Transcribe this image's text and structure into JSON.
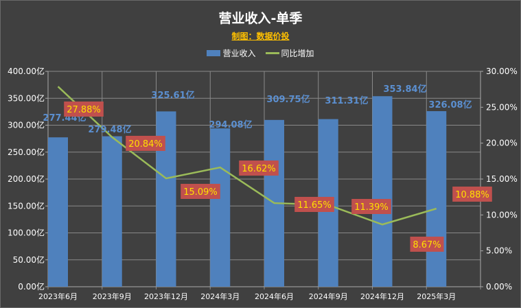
{
  "chart_data": {
    "type": "bar+line",
    "title": "营业收入-单季",
    "subtitle": "制图：数据价投",
    "categories": [
      "2023年6月",
      "2023年9月",
      "2023年12月",
      "2024年3月",
      "2024年6月",
      "2024年9月",
      "2024年12月",
      "2025年3月"
    ],
    "series": [
      {
        "name": "营业收入",
        "type": "bar",
        "axis": "left",
        "values": [
          277.44,
          279.48,
          325.61,
          294.08,
          309.75,
          311.31,
          353.84,
          326.08
        ],
        "labels": [
          "277.44亿",
          "279.48亿",
          "325.61亿",
          "294.08亿",
          "309.75亿",
          "311.31亿",
          "353.84亿",
          "326.08亿"
        ],
        "color": "#4f81bd"
      },
      {
        "name": "同比增加",
        "type": "line",
        "axis": "right",
        "values": [
          27.88,
          20.84,
          15.09,
          16.62,
          11.65,
          11.39,
          8.67,
          10.88
        ],
        "labels": [
          "27.88%",
          "20.84%",
          "15.09%",
          "16.62%",
          "11.65%",
          "11.39%",
          "8.67%",
          "10.88%"
        ],
        "color": "#9bbb59"
      }
    ],
    "y_left": {
      "range": [
        0,
        400
      ],
      "ticks": [
        "0.00亿",
        "50.00亿",
        "100.00亿",
        "150.00亿",
        "200.00亿",
        "250.00亿",
        "300.00亿",
        "350.00亿",
        "400.00亿"
      ]
    },
    "y_right": {
      "range": [
        0,
        30
      ],
      "ticks": [
        "0.00%",
        "5.00%",
        "10.00%",
        "15.00%",
        "20.00%",
        "25.00%",
        "30.00%"
      ]
    },
    "grid": true,
    "legend": "top-center",
    "colors": {
      "background": "#404040",
      "label_box": "#c0504d",
      "label_text": "#ffe000",
      "value_label": "#5b8fd0"
    }
  }
}
